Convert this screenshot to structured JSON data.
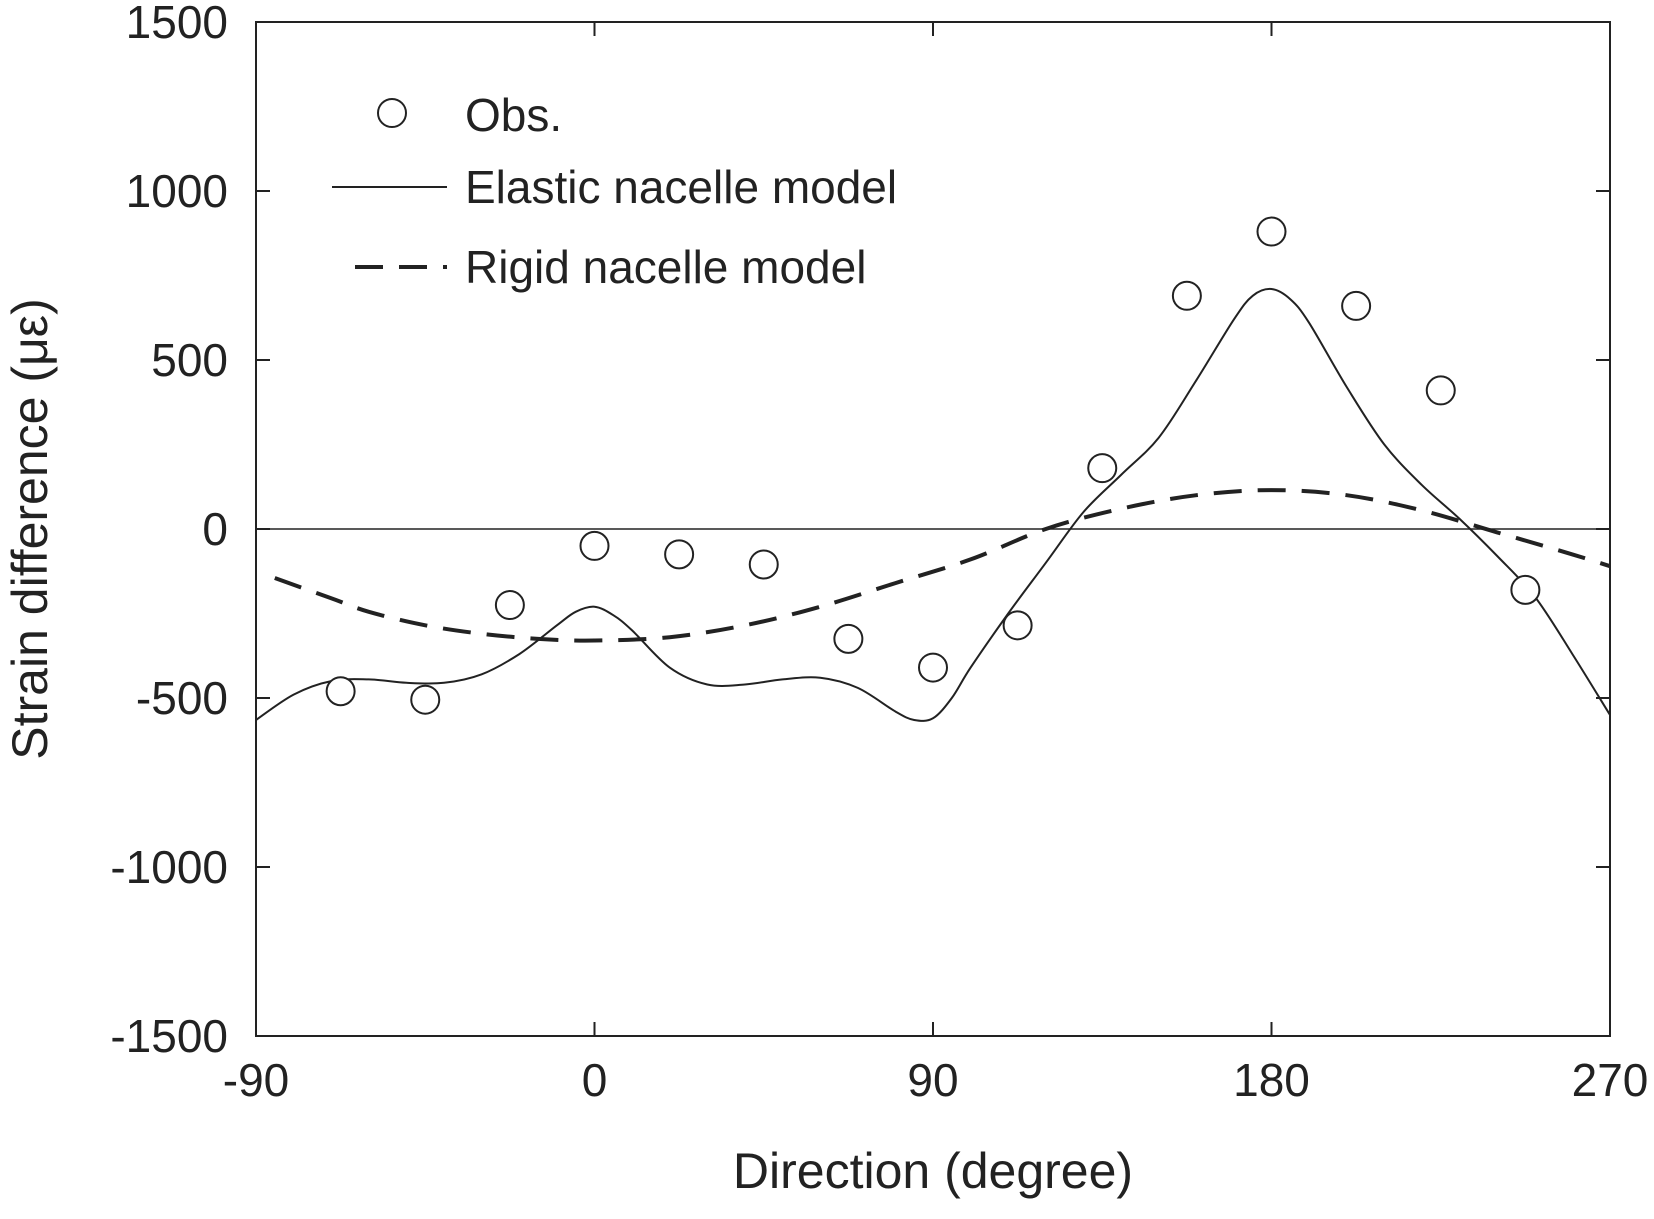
{
  "chart_data": {
    "type": "line",
    "title": "",
    "xlabel": "Direction (degree)",
    "ylabel": "Strain difference (με)",
    "xlim": [
      -90,
      270
    ],
    "ylim": [
      -1500,
      1500
    ],
    "x_ticks": [
      -90,
      0,
      90,
      180,
      270
    ],
    "y_ticks": [
      1500,
      1000,
      500,
      0,
      -500,
      -1000,
      -1500
    ],
    "x_tick_labels": [
      "-90",
      "0",
      "90",
      "180",
      "270"
    ],
    "y_tick_labels": [
      "1500",
      "1000",
      "500",
      "0",
      "-500",
      "-1000",
      "-1500"
    ],
    "grid": false,
    "legend_position": "top-left",
    "colors": {
      "ink": "#222222",
      "background": "#ffffff"
    },
    "series": [
      {
        "name": "Obs.",
        "style": "markers-open-circle",
        "x": [
          -67.5,
          -45,
          -22.5,
          0,
          22.5,
          45,
          67.5,
          90,
          112.5,
          135,
          157.5,
          180,
          202.5,
          225,
          247.5
        ],
        "y": [
          -480,
          -505,
          -225,
          -50,
          -75,
          -105,
          -325,
          -410,
          -285,
          180,
          690,
          880,
          660,
          410,
          -180
        ]
      },
      {
        "name": "Elastic nacelle model",
        "style": "solid-line",
        "x": [
          -90,
          -80,
          -70,
          -60,
          -50,
          -40,
          -30,
          -20,
          -10,
          -5,
          0,
          5,
          10,
          20,
          30,
          40,
          50,
          60,
          70,
          80,
          85,
          90,
          95,
          100,
          110,
          120,
          130,
          140,
          150,
          160,
          170,
          175,
          180,
          185,
          190,
          200,
          210,
          220,
          230,
          240,
          250,
          260,
          270
        ],
        "y": [
          -565,
          -490,
          -450,
          -445,
          -455,
          -455,
          -430,
          -370,
          -285,
          -245,
          -230,
          -255,
          -300,
          -410,
          -460,
          -460,
          -445,
          -440,
          -470,
          -540,
          -565,
          -560,
          -500,
          -410,
          -250,
          -100,
          50,
          160,
          270,
          440,
          620,
          690,
          710,
          680,
          610,
          420,
          250,
          130,
          30,
          -80,
          -200,
          -370,
          -550
        ]
      },
      {
        "name": "Rigid nacelle model",
        "style": "dashed-line",
        "x": [
          -85,
          -70,
          -60,
          -45,
          -30,
          -15,
          0,
          20,
          40,
          60,
          80,
          100,
          120,
          140,
          160,
          180,
          200,
          220,
          240,
          260,
          270
        ],
        "y": [
          -145,
          -205,
          -245,
          -285,
          -310,
          -325,
          -330,
          -320,
          -285,
          -230,
          -160,
          -90,
          0,
          60,
          100,
          115,
          100,
          55,
          -10,
          -75,
          -110
        ]
      }
    ]
  }
}
